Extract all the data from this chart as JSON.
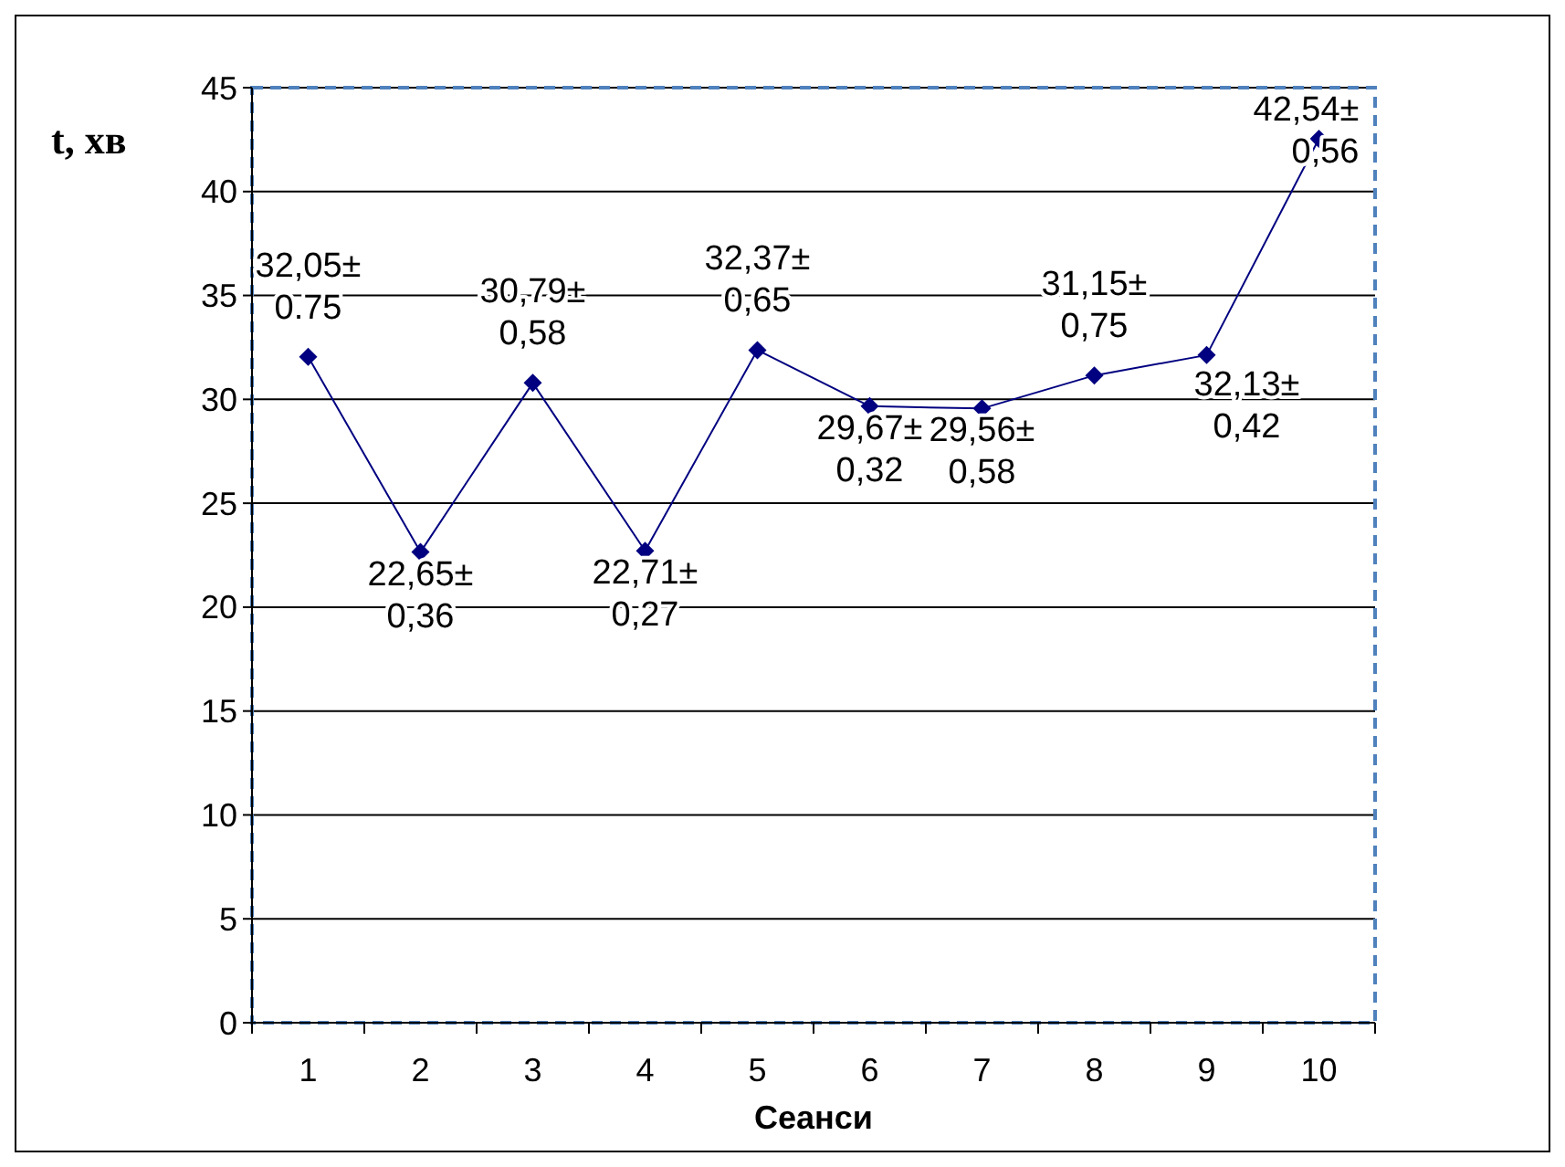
{
  "chart_data": {
    "type": "line",
    "xlabel": "Сеанси",
    "ylabel": "t, хв",
    "categories": [
      "1",
      "2",
      "3",
      "4",
      "5",
      "6",
      "7",
      "8",
      "9",
      "10"
    ],
    "series": [
      {
        "color": "#000080",
        "values": [
          32.05,
          22.65,
          30.79,
          22.71,
          32.37,
          29.67,
          29.56,
          31.15,
          32.13,
          42.54
        ],
        "value_labels": [
          "32,05±\n0.75",
          "22,65±\n0,36",
          "30,79±\n0,58",
          "22,71±\n0,27",
          "32,37±\n0,65",
          "29,67±\n0,32",
          "29,56±\n0,58",
          "31,15±\n0,75",
          "32,13±\n0,42",
          "42,54±\n0,56"
        ]
      }
    ],
    "ylim": [
      0,
      45
    ],
    "yticks": [
      0,
      5,
      10,
      15,
      20,
      25,
      30,
      35,
      40,
      45
    ],
    "grid": "y",
    "marker": "diamond",
    "line_style": "solid"
  }
}
